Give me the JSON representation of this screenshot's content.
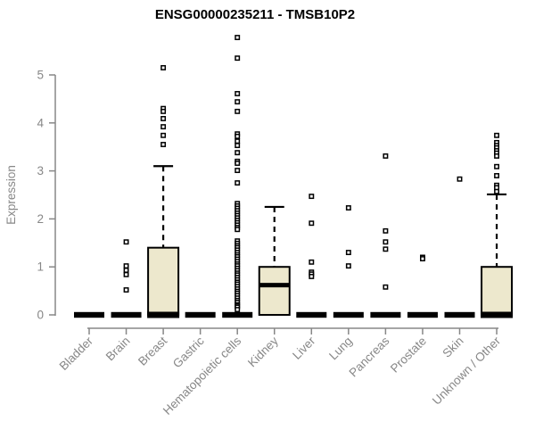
{
  "chart_data": {
    "type": "boxplot",
    "title": "ENSG00000235211 - TMSB10P2",
    "xlabel": "",
    "ylabel": "Expression",
    "y_ticks": [
      0,
      1,
      2,
      3,
      4,
      5
    ],
    "ylim": [
      0,
      5.9
    ],
    "grid": "off",
    "colors": {
      "box_fill": "#ede8cd",
      "box_stroke": "#000000",
      "median_color": "#000000",
      "outlier_stroke": "#000000",
      "outlier_fill": "#ffffff",
      "axis_color": "#878787",
      "label_color": "#878787",
      "title_color": "#000000",
      "background": "#ffffff"
    },
    "categories": [
      "Bladder",
      "Brain",
      "Breast",
      "Gastric",
      "Hematopoietic cells",
      "Kidney",
      "Liver",
      "Lung",
      "Pancreas",
      "Prostate",
      "Skin",
      "Unknown / Other"
    ],
    "boxes": [
      {
        "category": "Bladder",
        "q1": 0,
        "median": 0,
        "q3": 0,
        "whisker_low": 0,
        "whisker_high": 0,
        "outliers": []
      },
      {
        "category": "Brain",
        "q1": 0,
        "median": 0,
        "q3": 0,
        "whisker_low": 0,
        "whisker_high": 0,
        "outliers": [
          1.52,
          1.02,
          0.93,
          0.84,
          0.52
        ]
      },
      {
        "category": "Breast",
        "q1": 0,
        "median": 0,
        "q3": 1.4,
        "whisker_low": 0,
        "whisker_high": 3.1,
        "outliers": [
          5.15,
          4.3,
          4.24,
          4.09,
          3.92,
          3.74,
          3.55
        ]
      },
      {
        "category": "Gastric",
        "q1": 0,
        "median": 0,
        "q3": 0,
        "whisker_low": 0,
        "whisker_high": 0,
        "outliers": []
      },
      {
        "category": "Hematopoietic cells",
        "q1": 0,
        "median": 0,
        "q3": 0,
        "whisker_low": 0,
        "whisker_high": 0,
        "outliers": [
          5.78,
          5.35,
          4.61,
          4.44,
          4.24,
          3.77,
          3.72,
          3.62,
          3.53,
          3.38,
          3.2,
          3.16,
          3.01,
          2.75,
          2.32,
          2.27,
          2.22,
          2.17,
          2.12,
          2.07,
          2.02,
          1.97,
          1.92,
          1.87,
          1.82,
          1.78,
          1.54,
          1.49,
          1.44,
          1.4,
          1.35,
          1.3,
          1.25,
          1.21,
          1.16,
          1.11,
          1.06,
          1.02,
          0.97,
          0.92,
          0.87,
          0.83,
          0.78,
          0.73,
          0.68,
          0.64,
          0.59,
          0.54,
          0.49,
          0.45,
          0.4,
          0.35,
          0.3,
          0.26,
          0.21,
          0.19,
          0.16,
          0.11
        ]
      },
      {
        "category": "Kidney",
        "q1": 0,
        "median": 0.62,
        "q3": 1.0,
        "whisker_low": 0,
        "whisker_high": 2.25,
        "outliers": []
      },
      {
        "category": "Liver",
        "q1": 0,
        "median": 0,
        "q3": 0,
        "whisker_low": 0,
        "whisker_high": 0,
        "outliers": [
          2.47,
          1.91,
          1.1,
          0.89,
          0.85,
          0.8
        ]
      },
      {
        "category": "Lung",
        "q1": 0,
        "median": 0,
        "q3": 0,
        "whisker_low": 0,
        "whisker_high": 0,
        "outliers": [
          2.23,
          1.3,
          1.02
        ]
      },
      {
        "category": "Pancreas",
        "q1": 0,
        "median": 0,
        "q3": 0,
        "whisker_low": 0,
        "whisker_high": 0,
        "outliers": [
          3.31,
          1.75,
          1.52,
          1.37,
          0.58
        ]
      },
      {
        "category": "Prostate",
        "q1": 0,
        "median": 0,
        "q3": 0,
        "whisker_low": 0,
        "whisker_high": 0,
        "outliers": [
          1.2,
          1.17
        ]
      },
      {
        "category": "Skin",
        "q1": 0,
        "median": 0,
        "q3": 0,
        "whisker_low": 0,
        "whisker_high": 0,
        "outliers": [
          2.83
        ]
      },
      {
        "category": "Unknown / Other",
        "q1": 0,
        "median": 0,
        "q3": 1.0,
        "whisker_low": 0,
        "whisker_high": 2.51,
        "outliers": [
          3.74,
          3.59,
          3.53,
          3.48,
          3.42,
          3.37,
          3.31,
          3.09,
          2.9,
          2.7,
          2.65,
          2.57
        ]
      }
    ]
  }
}
